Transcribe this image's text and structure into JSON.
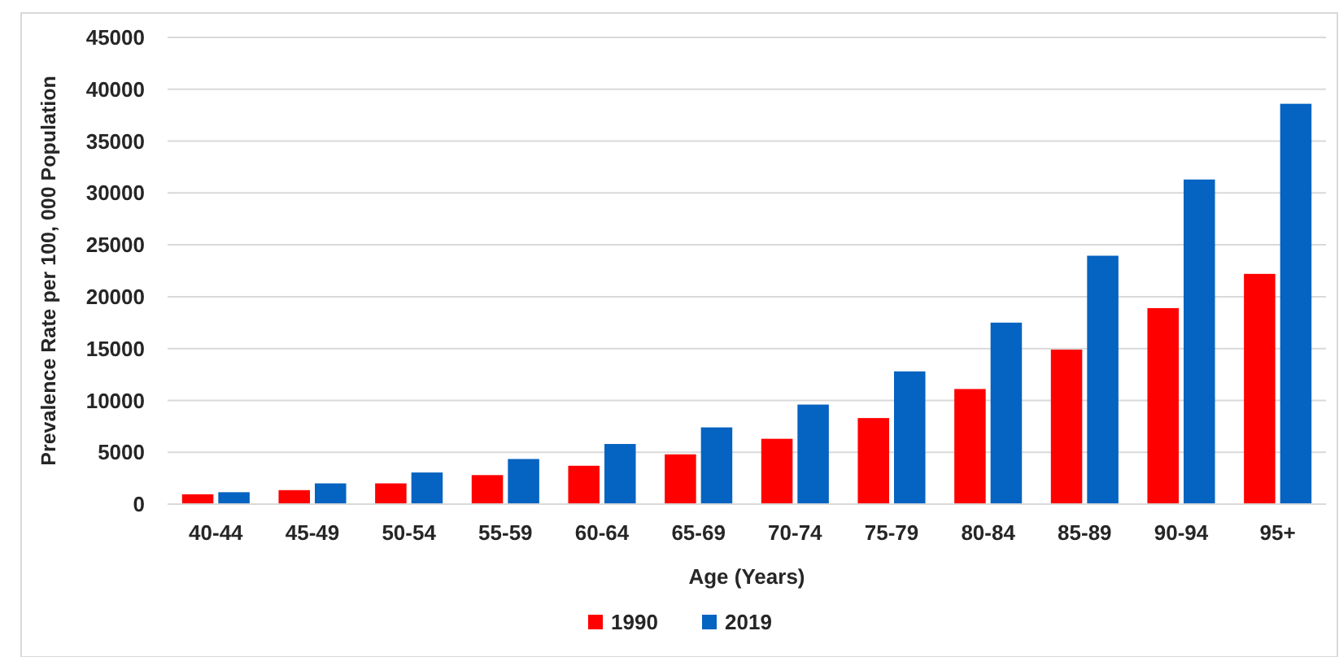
{
  "chart_data": {
    "type": "bar",
    "xlabel": "Age (Years)",
    "ylabel": "Prevalence Rate per 100, 000 Population",
    "categories": [
      "40-44",
      "45-49",
      "50-54",
      "55-59",
      "60-64",
      "65-69",
      "70-74",
      "75-79",
      "80-84",
      "85-89",
      "90-94",
      "95+"
    ],
    "series": [
      {
        "name": "1990",
        "color": "#ff0000",
        "values": [
          950,
          1350,
          2000,
          2800,
          3700,
          4800,
          6300,
          8300,
          11100,
          14900,
          18900,
          22200
        ]
      },
      {
        "name": "2019",
        "color": "#0563c1",
        "values": [
          1150,
          2000,
          3050,
          4350,
          5800,
          7400,
          9600,
          12800,
          17500,
          23950,
          31300,
          38600
        ]
      }
    ],
    "ylim": [
      0,
      45000
    ],
    "yticks": [
      0,
      5000,
      10000,
      15000,
      20000,
      25000,
      30000,
      35000,
      40000,
      45000
    ],
    "grid": "y",
    "legend": "bottom"
  }
}
